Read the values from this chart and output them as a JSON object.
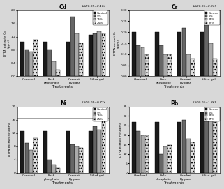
{
  "subplots": [
    {
      "title": "Cd",
      "lsd_text": "LSD0.05=0.104",
      "ylabel": "DTPA extracte Cd\n(ppm)",
      "ylim": [
        0.0,
        2.0
      ],
      "yticks": [
        0.0,
        0.4,
        0.8,
        1.2,
        1.6,
        2.0
      ],
      "ytick_labels": [
        "0.0",
        "0.4",
        "0.8",
        "1.2",
        "1.6",
        "2.0"
      ],
      "categories": [
        "Charcoal",
        "Rock\nphosphate",
        "Cement\nBy-pass",
        "Silica gel"
      ],
      "series": {
        "Control": [
          1.05,
          1.05,
          1.05,
          1.25
        ],
        "5%": [
          0.8,
          0.8,
          1.8,
          1.3
        ],
        "15%": [
          0.75,
          0.45,
          1.3,
          1.35
        ],
        "25%": [
          1.1,
          0.2,
          1.0,
          1.3
        ]
      }
    },
    {
      "title": "Cr",
      "lsd_text": "LSD0.05=0.019",
      "ylabel": "DTPA extract Cr\n(ppm)",
      "ylim": [
        0.0,
        0.3
      ],
      "yticks": [
        0.0,
        0.05,
        0.1,
        0.15,
        0.2,
        0.25,
        0.3
      ],
      "ytick_labels": [
        "0.00",
        "0.05",
        "0.10",
        "0.15",
        "0.20",
        "0.25",
        "0.30"
      ],
      "categories": [
        "Charcoal",
        "Rock\nphosphate",
        "Cement\nBy-pass",
        "Silica gel"
      ],
      "series": {
        "Control": [
          0.2,
          0.2,
          0.2,
          0.2
        ],
        "5%": [
          0.14,
          0.14,
          0.22,
          0.28
        ],
        "15%": [
          0.13,
          0.1,
          0.1,
          0.15
        ],
        "25%": [
          0.1,
          0.1,
          0.08,
          0.08
        ]
      }
    },
    {
      "title": "Ni",
      "lsd_text": "LSD0.05=0.774",
      "ylabel": "DTPA extract Ni (ppm)",
      "ylim": [
        0,
        20
      ],
      "yticks": [
        0,
        4,
        8,
        12,
        16,
        20
      ],
      "ytick_labels": [
        "0",
        "4",
        "8",
        "12",
        "16",
        "20"
      ],
      "hline": 16.5,
      "categories": [
        "Charcoal",
        "Rock\nphosphate",
        "Cement\nBy-pass",
        "Silica gel"
      ],
      "series": {
        "Control": [
          12.5,
          12.5,
          12.5,
          12.5
        ],
        "5%": [
          9.0,
          4.0,
          8.5,
          14.0
        ],
        "15%": [
          7.0,
          2.5,
          8.0,
          13.0
        ],
        "25%": [
          10.5,
          1.5,
          7.5,
          16.5
        ]
      }
    },
    {
      "title": "Pb",
      "lsd_text": "LSD0.05=1.365",
      "ylabel": "DTPA extract Pb (ppm)",
      "ylim": [
        0,
        35
      ],
      "yticks": [
        0,
        5,
        10,
        15,
        20,
        25,
        30,
        35
      ],
      "ytick_labels": [
        "0",
        "5",
        "10",
        "15",
        "20",
        "25",
        "30",
        "35"
      ],
      "categories": [
        "Charcoal",
        "Rock\nphosphate",
        "Cement\nBy-pass",
        "Silica gel"
      ],
      "series": {
        "Control": [
          27.0,
          27.0,
          27.0,
          32.0
        ],
        "5%": [
          22.0,
          10.0,
          28.0,
          31.0
        ],
        "15%": [
          20.0,
          14.0,
          18.0,
          31.5
        ],
        "25%": [
          20.0,
          14.5,
          16.0,
          27.0
        ]
      }
    }
  ],
  "xlabel": "Treatments",
  "legend_labels": [
    "Control",
    "5%",
    "15%",
    "25%"
  ],
  "bar_facecolors": [
    "#1a1a1a",
    "#666666",
    "#aaaaaa",
    "#e0e0e0"
  ],
  "bar_hatches": [
    "",
    "",
    "",
    "...."
  ],
  "figure_bgcolor": "#d8d8d8",
  "plot_bgcolor": "#ffffff"
}
